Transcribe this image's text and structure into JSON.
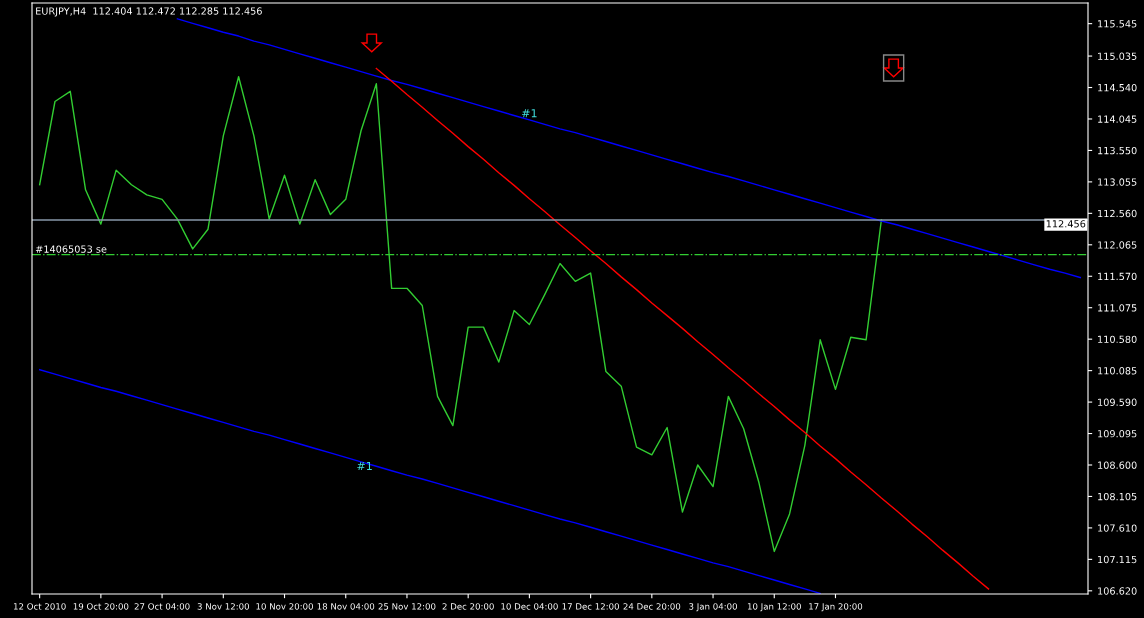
{
  "chart_data": {
    "type": "line",
    "title": "EURJPY,H4  112.404 112.472 112.285 112.456",
    "categories": [
      "12 Oct 2010",
      null,
      null,
      null,
      "19 Oct 20:00",
      null,
      null,
      null,
      "27 Oct 04:00",
      null,
      null,
      null,
      "3 Nov 12:00",
      null,
      null,
      null,
      "10 Nov 20:00",
      null,
      null,
      null,
      "18 Nov 04:00",
      null,
      null,
      null,
      "25 Nov 12:00",
      null,
      null,
      null,
      "2 Dec 20:00",
      null,
      null,
      null,
      "10 Dec 04:00",
      null,
      null,
      null,
      "17 Dec 12:00",
      null,
      null,
      null,
      "24 Dec 20:00",
      null,
      null,
      null,
      "3 Jan 04:00",
      null,
      null,
      null,
      "10 Jan 12:00",
      null,
      null,
      null,
      "17 Jan 20:00",
      null,
      null,
      null,
      null,
      null,
      null,
      null,
      null,
      null,
      null,
      null,
      null,
      null,
      null,
      null,
      null
    ],
    "series": [
      {
        "color": "#32cd32",
        "values": [
          113.01,
          114.32,
          114.48,
          112.93,
          112.39,
          113.24,
          113.01,
          112.85,
          112.78,
          112.47,
          112.0,
          112.31,
          113.78,
          114.71,
          113.78,
          112.47,
          113.16,
          112.39,
          113.09,
          112.54,
          112.78,
          113.86,
          114.6,
          111.38,
          111.38,
          111.11,
          109.68,
          109.22,
          110.77,
          110.77,
          110.22,
          111.03,
          110.81,
          111.28,
          111.77,
          111.49,
          111.62,
          110.07,
          109.84,
          108.88,
          108.76,
          109.19,
          107.86,
          108.6,
          108.26,
          109.68,
          109.17,
          108.32,
          107.24,
          107.83,
          108.91,
          110.57,
          109.79,
          110.61,
          110.57,
          112.46,
          null,
          null,
          null,
          null,
          null,
          null,
          null,
          null,
          null,
          null,
          null,
          null,
          null
        ]
      },
      {
        "type": "line",
        "color": "#0000ff",
        "values": [
          null,
          null,
          null,
          null,
          null,
          null,
          null,
          null,
          null,
          115.62,
          115.55,
          115.48,
          115.41,
          115.35,
          115.27,
          115.21,
          115.14,
          115.07,
          115.0,
          114.93,
          114.86,
          114.79,
          114.72,
          114.65,
          114.59,
          114.52,
          114.45,
          114.38,
          114.31,
          114.24,
          114.17,
          114.1,
          114.03,
          113.96,
          113.89,
          113.83,
          113.76,
          113.69,
          113.62,
          113.55,
          113.48,
          113.41,
          113.34,
          113.27,
          113.2,
          113.14,
          113.07,
          113.0,
          112.93,
          112.86,
          112.79,
          112.72,
          112.65,
          112.58,
          112.51,
          112.44,
          112.38,
          112.31,
          112.24,
          112.17,
          112.1,
          112.03,
          111.96,
          111.89,
          111.82,
          111.75,
          111.68,
          111.62,
          111.55
        ]
      },
      {
        "type": "line",
        "color": "#0000ff",
        "values": [
          110.1,
          110.03,
          109.96,
          109.89,
          109.82,
          109.76,
          109.69,
          109.62,
          109.55,
          109.48,
          109.41,
          109.34,
          109.27,
          109.2,
          109.13,
          109.07,
          109.0,
          108.93,
          108.86,
          108.79,
          108.72,
          108.65,
          108.58,
          108.51,
          108.44,
          108.38,
          108.31,
          108.24,
          108.17,
          108.1,
          108.03,
          107.96,
          107.89,
          107.82,
          107.75,
          107.69,
          107.62,
          107.55,
          107.48,
          107.41,
          107.34,
          107.27,
          107.2,
          107.13,
          107.06,
          107.0,
          106.93,
          106.86,
          106.79,
          106.72,
          106.65,
          106.58,
          null,
          null,
          null,
          null,
          null,
          null,
          null,
          null,
          null,
          null,
          null,
          null,
          null,
          null,
          null,
          null,
          null
        ]
      },
      {
        "type": "line",
        "color": "#ff0000",
        "values": [
          null,
          null,
          null,
          null,
          null,
          null,
          null,
          null,
          null,
          null,
          null,
          null,
          null,
          null,
          null,
          null,
          null,
          null,
          null,
          null,
          null,
          null,
          114.84,
          114.64,
          114.43,
          114.23,
          114.02,
          113.82,
          113.61,
          113.41,
          113.2,
          113.0,
          112.79,
          112.59,
          112.38,
          112.18,
          111.97,
          111.77,
          111.56,
          111.36,
          111.15,
          110.95,
          110.75,
          110.54,
          110.34,
          110.13,
          109.93,
          109.72,
          109.52,
          109.31,
          109.11,
          108.9,
          108.7,
          108.49,
          108.29,
          108.08,
          107.88,
          107.67,
          107.47,
          107.26,
          107.06,
          106.85,
          106.65,
          null,
          null,
          null,
          null,
          null,
          null
        ]
      }
    ],
    "ylim": [
      106.57,
      115.87
    ],
    "yticks": [
      {
        "value": 106.62,
        "label": "106.620"
      },
      {
        "value": 107.115,
        "label": "107.115"
      },
      {
        "value": 107.61,
        "label": "107.610"
      },
      {
        "value": 108.105,
        "label": "108.105"
      },
      {
        "value": 108.6,
        "label": "108.600"
      },
      {
        "value": 109.095,
        "label": "109.095"
      },
      {
        "value": 109.59,
        "label": "109.590"
      },
      {
        "value": 110.085,
        "label": "110.085"
      },
      {
        "value": 110.58,
        "label": "110.580"
      },
      {
        "value": 111.075,
        "label": "111.075"
      },
      {
        "value": 111.57,
        "label": "111.570"
      },
      {
        "value": 112.065,
        "label": "112.065"
      },
      {
        "value": 112.56,
        "label": "112.560"
      },
      {
        "value": 113.055,
        "label": "113.055"
      },
      {
        "value": 113.55,
        "label": "113.550"
      },
      {
        "value": 114.045,
        "label": "114.045"
      },
      {
        "value": 114.54,
        "label": "114.540"
      },
      {
        "value": 115.035,
        "label": "115.035"
      },
      {
        "value": 115.545,
        "label": "115.545"
      }
    ],
    "ref_lines": [
      {
        "axis": "y",
        "value": 112.456,
        "label": "112.456",
        "color": "#8899aa",
        "line_style": "solid"
      },
      {
        "axis": "y",
        "value": 111.91,
        "label": "#14065053 se",
        "color": "#32cd32",
        "line_style": "dashdot"
      }
    ],
    "annotations": [
      {
        "text": "#1",
        "x": "10 Dec 04:00",
        "y": 114.12
      },
      "#1"
    ],
    "grid": false,
    "legend": false,
    "marker": "none",
    "line_style": "solid"
  }
}
